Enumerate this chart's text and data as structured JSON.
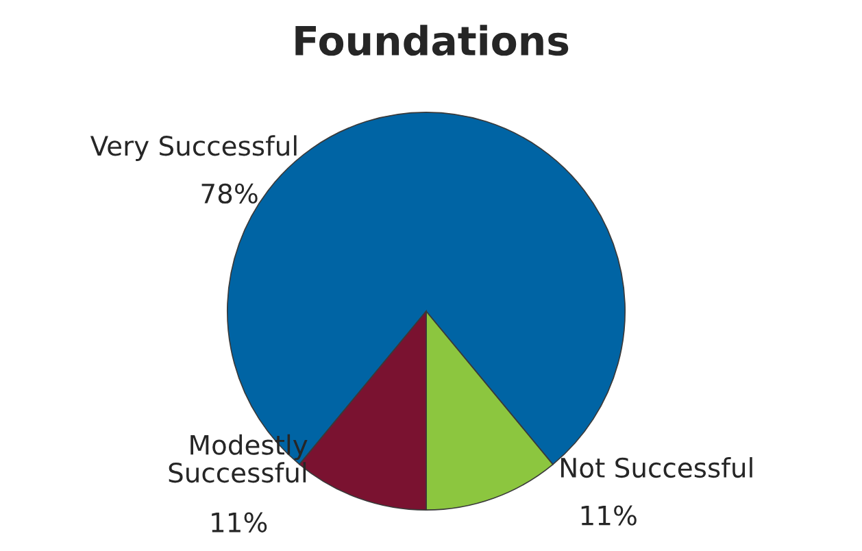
{
  "chart_data": {
    "type": "pie",
    "title": "Foundations",
    "categories": [
      "Not Successful",
      "Very Successful",
      "Modestly Successful"
    ],
    "values": [
      11,
      78,
      11
    ],
    "value_labels": [
      "11%",
      "78%",
      "11%"
    ],
    "colors": [
      "#8cc63f",
      "#0064a4",
      "#7a1230"
    ]
  }
}
